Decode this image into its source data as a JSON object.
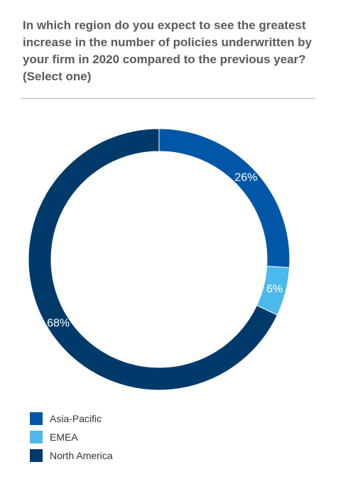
{
  "chart_data": {
    "type": "pie",
    "title": "In which region do you expect to see the greatest increase in the number of policies underwritten by your firm in 2020 compared to the previous year? (Select one)",
    "categories": [
      "Asia-Pacific",
      "EMEA",
      "North America"
    ],
    "values": [
      26,
      6,
      68
    ],
    "labels": [
      "26%",
      "6%",
      "68%"
    ],
    "colors": [
      "#0057a8",
      "#4cb9ec",
      "#003a6a"
    ],
    "style": "donut",
    "legend": "bottom-left"
  }
}
